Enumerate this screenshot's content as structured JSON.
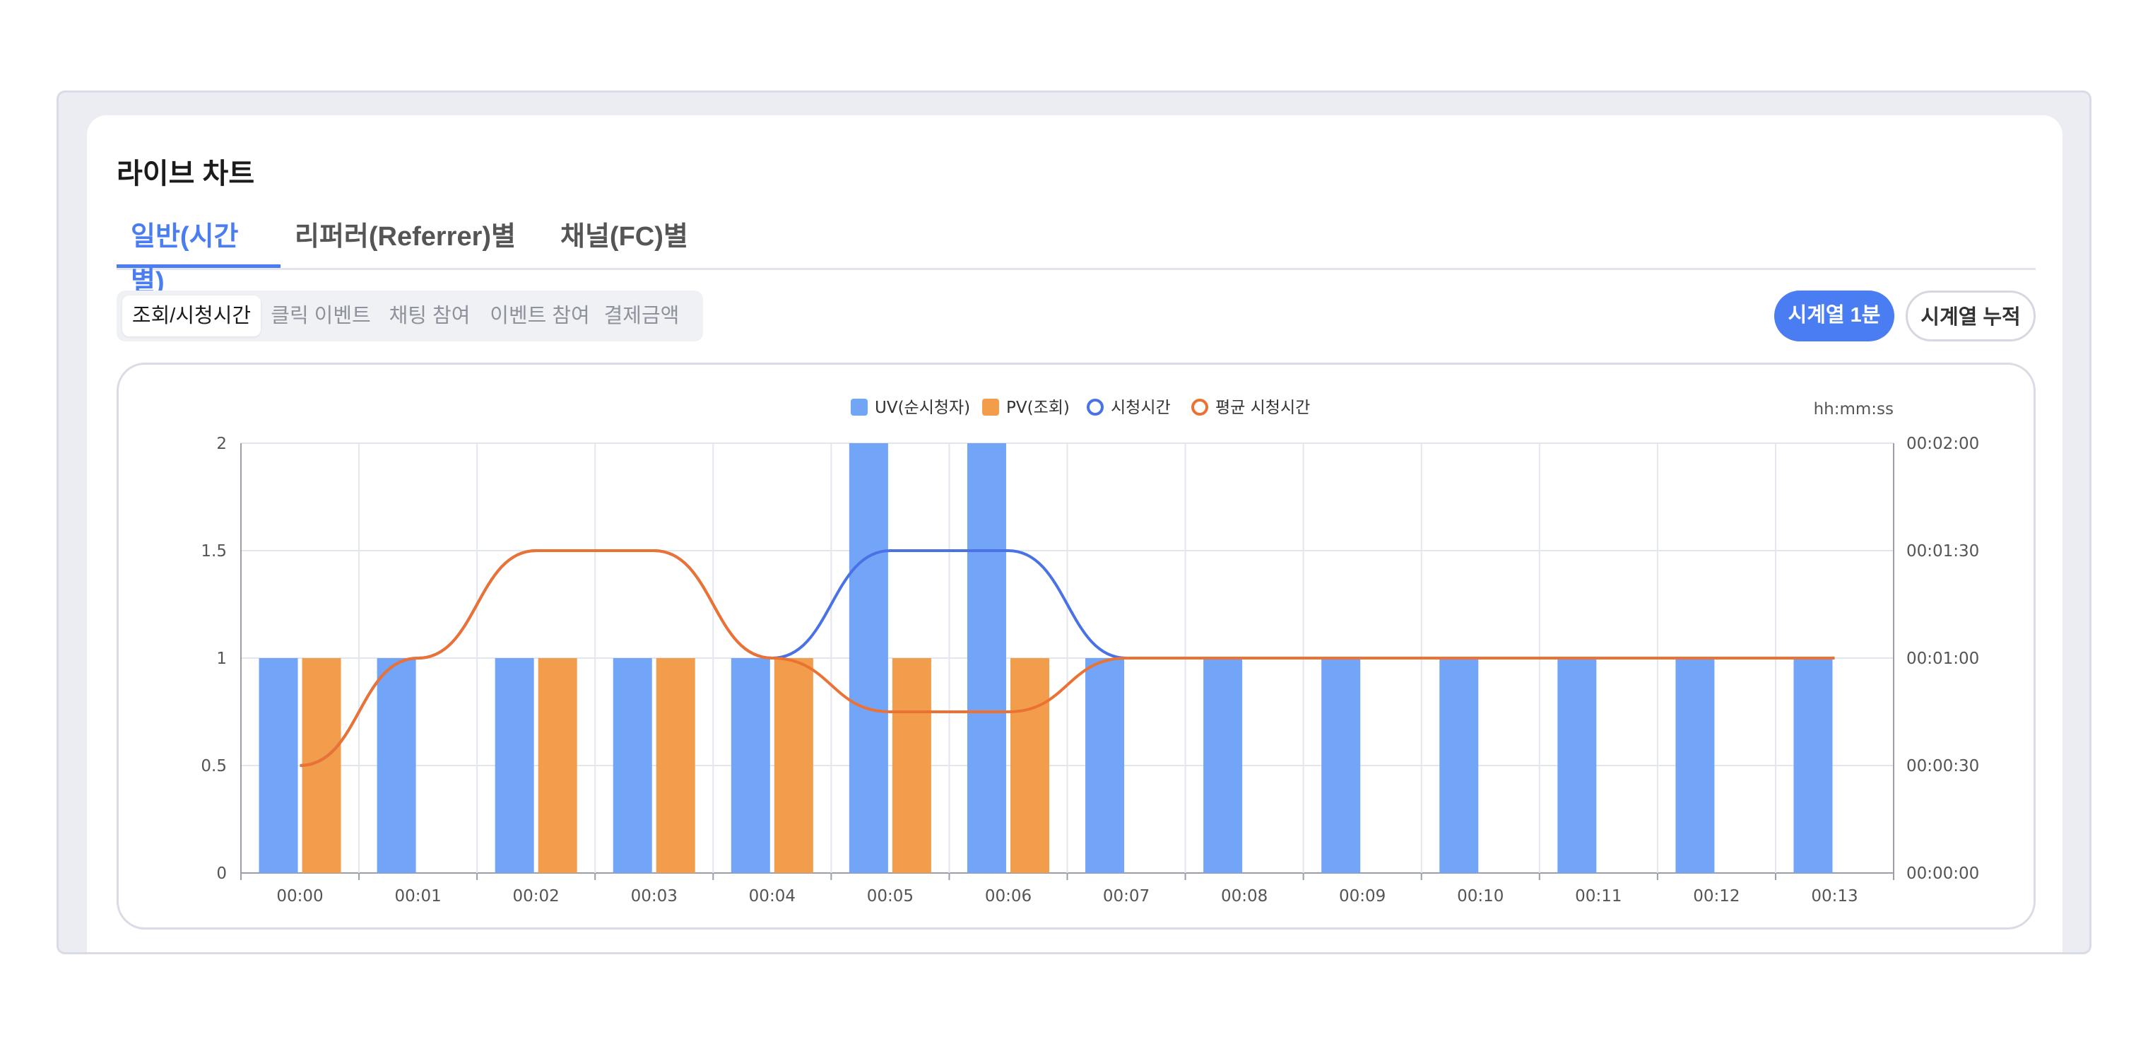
{
  "page": {
    "title": "라이브 차트"
  },
  "tabs": [
    {
      "label": "일반(시간별)",
      "active": true
    },
    {
      "label": "리퍼러(Referrer)별",
      "active": false
    },
    {
      "label": "채널(FC)별",
      "active": false
    }
  ],
  "subtabs": [
    {
      "label": "조회/시청시간",
      "active": true
    },
    {
      "label": "클릭 이벤트",
      "active": false
    },
    {
      "label": "채팅 참여",
      "active": false
    },
    {
      "label": "이벤트 참여",
      "active": false
    },
    {
      "label": "결제금액",
      "active": false
    }
  ],
  "buttons": {
    "primary": "시계열 1분",
    "secondary": "시계열 누적"
  },
  "colors": {
    "accent": "#4a7cf2",
    "uv": "#72a5f7",
    "pv": "#f29d4b",
    "watch": "#4a72e6",
    "avg": "#ec7233"
  },
  "chart_data": {
    "type": "bar",
    "categories": [
      "00:00",
      "00:01",
      "00:02",
      "00:03",
      "00:04",
      "00:05",
      "00:06",
      "00:07",
      "00:08",
      "00:09",
      "00:10",
      "00:11",
      "00:12",
      "00:13"
    ],
    "series": [
      {
        "name": "UV(순시청자)",
        "type": "bar",
        "axis": "left",
        "values": [
          1,
          1,
          1,
          1,
          1,
          2,
          2,
          1,
          1,
          1,
          1,
          1,
          1,
          1
        ]
      },
      {
        "name": "PV(조회)",
        "type": "bar",
        "axis": "left",
        "values": [
          1,
          0,
          1,
          1,
          1,
          1,
          1,
          0,
          0,
          0,
          0,
          0,
          0,
          0
        ]
      },
      {
        "name": "시청시간",
        "type": "line",
        "axis": "right",
        "values": [
          30,
          60,
          90,
          90,
          60,
          90,
          90,
          60,
          60,
          60,
          60,
          60,
          60,
          60
        ]
      },
      {
        "name": "평균 시청시간",
        "type": "line",
        "axis": "right",
        "values": [
          30,
          60,
          90,
          90,
          60,
          45,
          45,
          60,
          60,
          60,
          60,
          60,
          60,
          60
        ]
      }
    ],
    "ylim": [
      0,
      2
    ],
    "yticks": [
      "0",
      "0.5",
      "1",
      "1.5",
      "2"
    ],
    "y2lim": [
      0,
      120
    ],
    "y2ticks": [
      "00:00:00",
      "00:00:30",
      "00:01:00",
      "00:01:30",
      "00:02:00"
    ],
    "y2label": "hh:mm:ss",
    "grid": true,
    "legend": "top-center"
  }
}
